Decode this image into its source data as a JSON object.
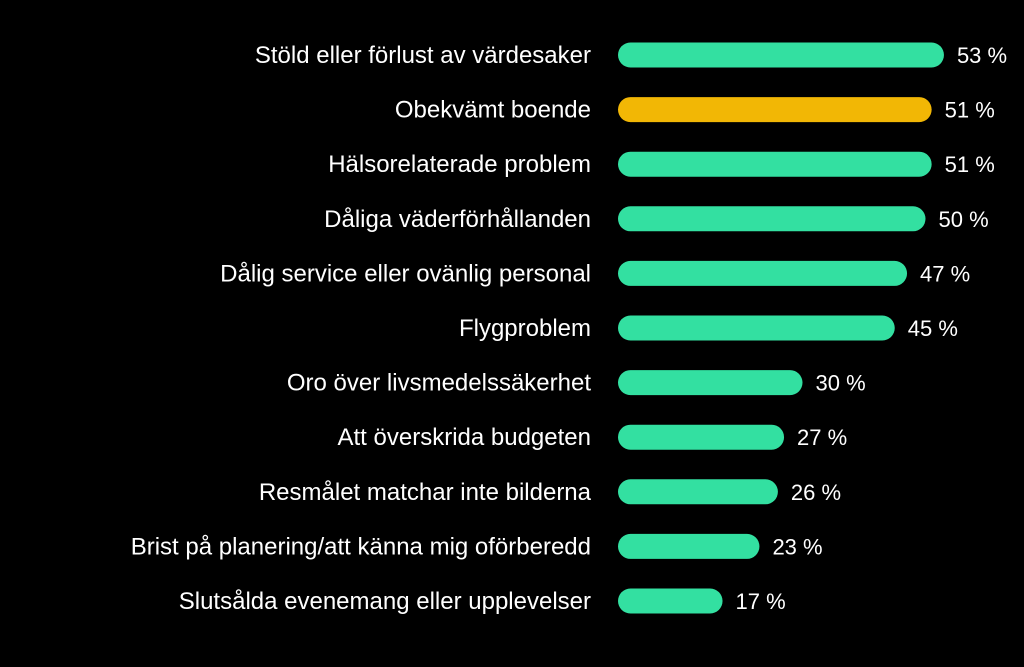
{
  "chart_data": {
    "type": "bar",
    "orientation": "horizontal",
    "categories": [
      "Stöld eller förlust av värdesaker",
      "Obekvämt boende",
      "Hälsorelaterade problem",
      "Dåliga väderförhållanden",
      "Dålig service eller ovänlig personal",
      "Flygproblem",
      "Oro över livsmedelssäkerhet",
      "Att överskrida budgeten",
      "Resmålet matchar inte bilderna",
      "Brist på planering/att känna mig oförberedd",
      "Slutsålda evenemang eller upplevelser"
    ],
    "values": [
      53,
      51,
      51,
      50,
      47,
      45,
      30,
      27,
      26,
      23,
      17
    ],
    "value_labels": [
      "53 %",
      "51 %",
      "51 %",
      "50 %",
      "47 %",
      "45 %",
      "30 %",
      "27 %",
      "26 %",
      "23 %",
      "17 %"
    ],
    "highlight_index": 1,
    "grid": false,
    "legend": "none"
  },
  "colors": {
    "background": "#000000",
    "bar": "#33e0a1",
    "highlight": "#f2b705",
    "text": "#ffffff"
  }
}
